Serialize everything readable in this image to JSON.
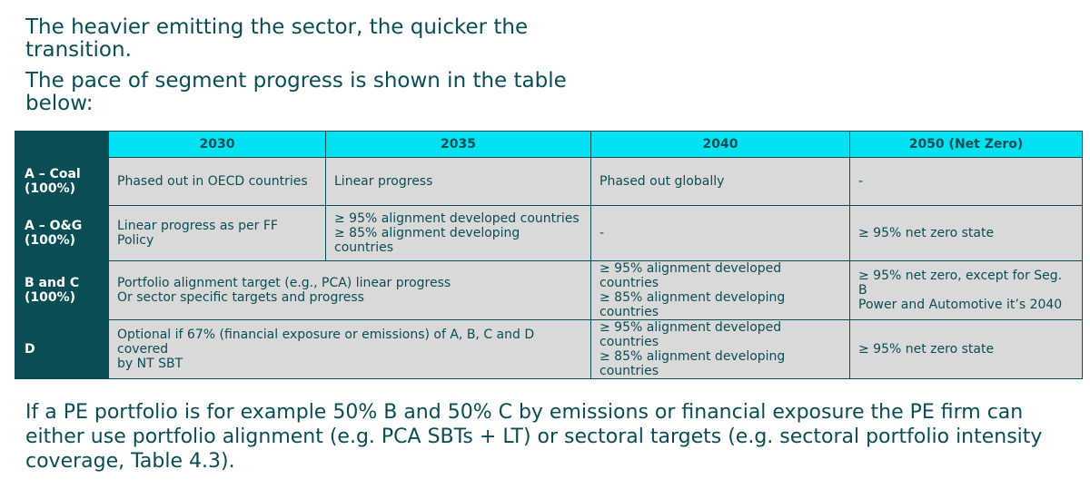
{
  "heading_line1": "The heavier emitting the sector, the quicker the transition.",
  "heading_line2": "The pace of segment progress is shown in the table below:",
  "table": {
    "columns": [
      "2030",
      "2035",
      "2040",
      "2050 (Net Zero)"
    ],
    "rows": [
      {
        "label": [
          "A – Coal",
          "(100%)"
        ],
        "c2030": [
          "Phased out in OECD countries"
        ],
        "c2035": [
          "Linear progress"
        ],
        "c2040": [
          "Phased out globally"
        ],
        "c2050": [
          "-"
        ]
      },
      {
        "label": [
          "A – O&G",
          "(100%)"
        ],
        "c2030": [
          "Linear progress as per FF Policy"
        ],
        "c2035": [
          "≥ 95% alignment developed countries",
          "≥ 85% alignment developing countries"
        ],
        "c2040": [
          "-"
        ],
        "c2050": [
          "≥ 95% net zero state"
        ]
      },
      {
        "label": [
          "B and C",
          "(100%)"
        ],
        "c2030_35": [
          "Portfolio alignment target (e.g., PCA) linear progress",
          "Or sector specific targets and progress"
        ],
        "c2040": [
          "≥ 95% alignment developed countries",
          "≥ 85% alignment developing",
          "countries"
        ],
        "c2050": [
          "≥ 95% net zero, except for Seg. B",
          "Power and Automotive it’s 2040"
        ]
      },
      {
        "label": [
          "D"
        ],
        "c2030_35": [
          "Optional if 67% (financial exposure or emissions) of A, B, C and D covered",
          "by NT SBT"
        ],
        "c2040": [
          "≥ 95% alignment developed countries",
          "≥ 85% alignment developing",
          "countries"
        ],
        "c2050": [
          "≥ 95% net zero state"
        ]
      }
    ]
  },
  "footer": "If a PE portfolio is for example 50% B and 50% C by emissions or financial exposure the PE firm can either use portfolio alignment (e.g. PCA SBTs + LT) or sectoral targets (e.g. sectoral portfolio intensity coverage, Table 4.3)."
}
